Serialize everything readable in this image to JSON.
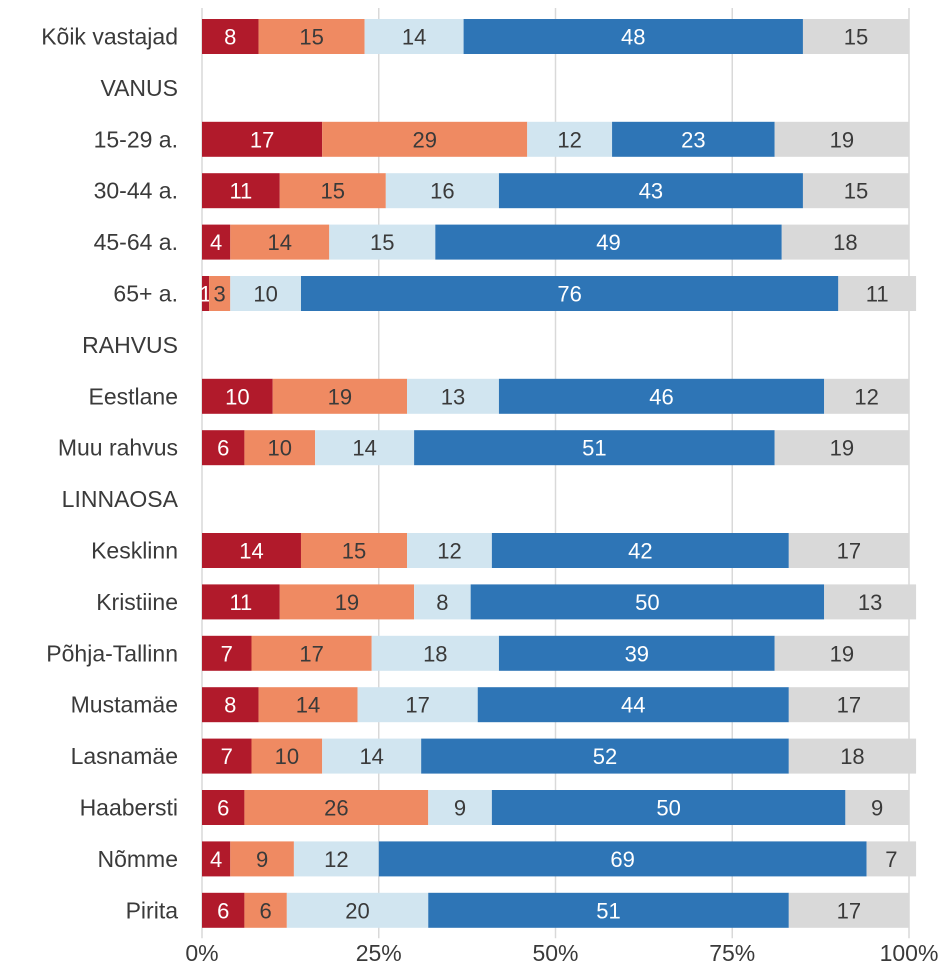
{
  "chart_data": {
    "type": "bar",
    "orientation": "horizontal",
    "stacked": true,
    "categories": [
      "Kõik vastajad",
      "VANUS",
      "15-29 a.",
      "30-44 a.",
      "45-64 a.",
      "65+ a.",
      "RAHVUS",
      "Eestlane",
      "Muu rahvus",
      "LINNAOSA",
      "Kesklinn",
      "Kristiine",
      "Põhja-Tallinn",
      "Mustamäe",
      "Lasnamäe",
      "Haabersti",
      "Nõmme",
      "Pirita"
    ],
    "series": [
      {
        "color": "#b11a2b",
        "text_color": "#ffffff",
        "values": [
          8,
          null,
          17,
          11,
          4,
          1,
          null,
          10,
          6,
          null,
          14,
          11,
          7,
          8,
          7,
          6,
          4,
          6
        ]
      },
      {
        "color": "#ef8a62",
        "text_color": "#3a3a3a",
        "values": [
          15,
          null,
          29,
          15,
          14,
          3,
          null,
          19,
          10,
          null,
          15,
          19,
          17,
          14,
          10,
          26,
          9,
          6
        ]
      },
      {
        "color": "#d1e5f0",
        "text_color": "#3a3a3a",
        "values": [
          14,
          null,
          12,
          16,
          15,
          10,
          null,
          13,
          14,
          null,
          12,
          8,
          18,
          17,
          14,
          9,
          12,
          20
        ]
      },
      {
        "color": "#2e75b6",
        "text_color": "#ffffff",
        "values": [
          48,
          null,
          23,
          43,
          49,
          76,
          null,
          46,
          51,
          null,
          42,
          50,
          39,
          44,
          52,
          50,
          69,
          51
        ]
      },
      {
        "color": "#d9d9d9",
        "text_color": "#3a3a3a",
        "values": [
          15,
          null,
          19,
          15,
          18,
          11,
          null,
          12,
          19,
          null,
          17,
          13,
          19,
          17,
          18,
          9,
          7,
          17
        ]
      }
    ],
    "x_ticks": [
      "0%",
      "25%",
      "50%",
      "75%",
      "100%"
    ],
    "xlim": [
      0,
      100
    ],
    "grid": true,
    "legend": "none",
    "title": "",
    "xlabel": "",
    "ylabel": ""
  }
}
